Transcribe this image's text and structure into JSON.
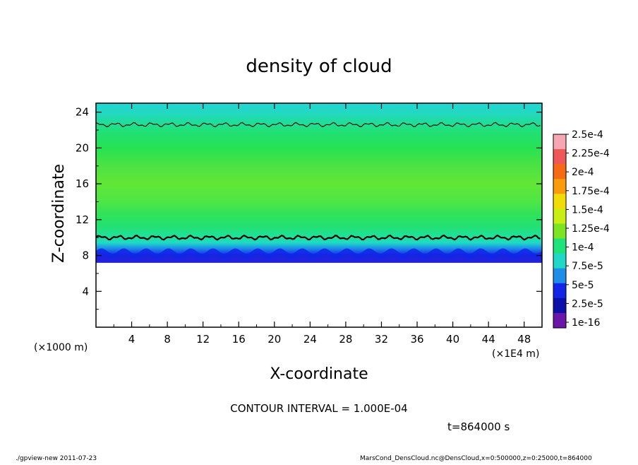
{
  "chart_data": {
    "type": "heatmap",
    "title": "density of cloud",
    "xlabel": "X-coordinate",
    "ylabel": "Z-coordinate",
    "x_unit": "(×1E4 m)",
    "y_unit": "(×1000 m)",
    "xlim": [
      0,
      50
    ],
    "ylim": [
      0,
      25
    ],
    "x_ticks": [
      "4",
      "8",
      "12",
      "16",
      "20",
      "24",
      "28",
      "32",
      "36",
      "40",
      "44",
      "48"
    ],
    "y_ticks": [
      "4",
      "8",
      "12",
      "16",
      "20",
      "24"
    ],
    "colorbar_labels": [
      "2.5e-4",
      "2.25e-4",
      "2e-4",
      "1.75e-4",
      "1.5e-4",
      "1.25e-4",
      "1e-4",
      "7.5e-5",
      "5e-5",
      "2.5e-5",
      "1e-16"
    ],
    "colorbar_colors": [
      "#f6a7b3",
      "#ef5858",
      "#f66a16",
      "#f89c0c",
      "#f2dc08",
      "#c8ee12",
      "#7ce420",
      "#1ee27a",
      "#20d8c8",
      "#1c8ee8",
      "#1226e8",
      "#0c10a8",
      "#6a16a8"
    ],
    "contour_interval": "CONTOUR INTERVAL = 1.000E-04",
    "time": "t=864000 s",
    "profile": [
      {
        "z": 7.2,
        "color": "#6a16a8"
      },
      {
        "z": 8.0,
        "color": "#1226e8"
      },
      {
        "z": 8.8,
        "color": "#1c8ee8"
      },
      {
        "z": 9.4,
        "color": "#20d8c8"
      },
      {
        "z": 10.0,
        "color": "#1ee2a0"
      },
      {
        "z": 11.0,
        "color": "#22e07a"
      },
      {
        "z": 12.5,
        "color": "#2ee25a"
      },
      {
        "z": 14.0,
        "color": "#4ee646"
      },
      {
        "z": 16.0,
        "color": "#62e636"
      },
      {
        "z": 18.0,
        "color": "#4ce244"
      },
      {
        "z": 20.0,
        "color": "#26e252"
      },
      {
        "z": 22.0,
        "color": "#20e07a"
      },
      {
        "z": 23.0,
        "color": "#20dca0"
      },
      {
        "z": 24.0,
        "color": "#22d8c4"
      },
      {
        "z": 25.0,
        "color": "#24d4d4"
      }
    ],
    "contour_lines": [
      {
        "level": "1e-4",
        "z": 10.0
      },
      {
        "level": "1e-4",
        "z": 22.6
      }
    ]
  },
  "footer": {
    "left": "./gpview-new   2011-07-23",
    "right": "MarsCond_DensCloud.nc@DensCloud,x=0:500000,z=0:25000,t=864000"
  }
}
